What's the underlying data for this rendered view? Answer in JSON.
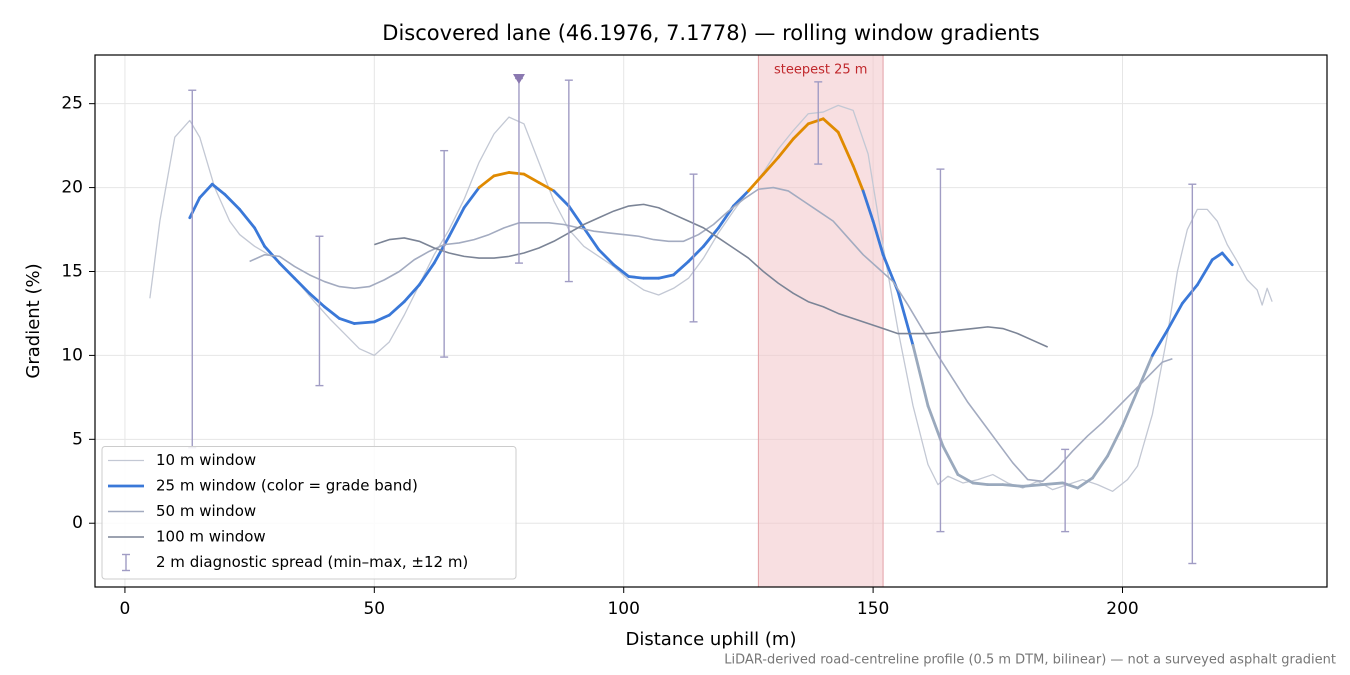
{
  "chart_data": {
    "type": "line",
    "title": "Discovered lane (46.1976, 7.1778) — rolling window gradients",
    "xlabel": "Distance uphill (m)",
    "ylabel": "Gradient (%)",
    "note": "LiDAR-derived road-centreline profile (0.5 m DTM, bilinear) — not a surveyed asphalt gradient",
    "xlim": [
      -6,
      241
    ],
    "ylim": [
      -3.8,
      27.9
    ],
    "xticks": [
      0,
      50,
      100,
      150,
      200
    ],
    "yticks": [
      0,
      5,
      10,
      15,
      20,
      25
    ],
    "grid": true,
    "legend": "lower left",
    "highlight": {
      "label": "steepest 25 m",
      "range": [
        127,
        152
      ],
      "color": "#f2c4c8",
      "text_color": "#c0282c"
    },
    "marker": {
      "x": 79,
      "color": "#8a78b0"
    },
    "series": [
      {
        "name": "10 m window",
        "color": "#c3c8d4",
        "width": 1.3,
        "x": [
          5,
          7,
          10,
          13,
          15,
          18,
          21,
          23,
          26,
          30,
          34,
          38,
          41,
          44,
          47,
          50,
          53,
          56,
          59,
          62,
          65,
          68,
          71,
          74,
          77,
          80,
          83,
          86,
          89,
          92,
          95,
          98,
          101,
          104,
          107,
          110,
          113,
          116,
          119,
          122,
          125,
          128,
          131,
          134,
          137,
          140,
          143,
          146,
          149,
          152,
          155,
          158,
          161,
          163,
          165,
          168,
          171,
          174,
          177,
          180,
          183,
          186,
          189,
          192,
          195,
          198,
          201,
          203,
          206,
          209,
          211,
          213,
          215,
          217,
          219,
          221,
          223,
          225,
          227,
          228,
          229,
          230
        ],
        "values": [
          13.4,
          18,
          23,
          24,
          23,
          20,
          18,
          17.2,
          16.5,
          15.8,
          14.6,
          13.2,
          12.2,
          11.3,
          10.4,
          10,
          10.8,
          12.4,
          14.2,
          16,
          17.5,
          19.3,
          21.5,
          23.2,
          24.2,
          23.8,
          21.5,
          19.2,
          17.5,
          16.5,
          15.9,
          15.3,
          14.5,
          13.9,
          13.6,
          14,
          14.6,
          15.8,
          17.3,
          18.6,
          19.8,
          20.9,
          22.3,
          23.4,
          24.4,
          24.5,
          24.9,
          24.6,
          22,
          16.5,
          11.5,
          7,
          3.5,
          2.3,
          2.8,
          2.4,
          2.6,
          2.9,
          2.4,
          2.1,
          2.5,
          2,
          2.3,
          2.6,
          2.3,
          1.9,
          2.6,
          3.4,
          6.5,
          11.2,
          15,
          17.5,
          18.7,
          18.7,
          18,
          16.6,
          15.6,
          14.5,
          13.9,
          13,
          14,
          13.2
        ]
      },
      {
        "name": "25 m window (color = grade band)",
        "color": "#3a78d8",
        "width": 2.8,
        "band_edges": [
          10,
          20
        ],
        "band_colors": [
          "#9aa9bd",
          "#3a78d8",
          "#e08a00"
        ],
        "x": [
          13,
          15,
          17.5,
          20,
          23,
          26,
          28,
          31,
          34,
          37,
          40,
          43,
          46,
          50,
          53,
          56,
          59,
          62,
          65,
          68,
          71,
          74,
          77,
          80,
          83,
          86,
          89,
          92,
          95,
          98,
          101,
          104,
          107,
          110,
          113,
          116,
          119,
          122,
          125,
          128,
          131,
          134,
          137,
          140,
          143,
          146,
          148,
          150,
          152,
          155,
          158,
          161,
          164,
          167,
          170,
          173,
          176,
          180,
          184,
          188,
          191,
          194,
          197,
          200,
          203,
          206,
          209,
          212,
          215,
          218,
          220,
          222
        ],
        "values": [
          18.2,
          19.4,
          20.2,
          19.6,
          18.7,
          17.6,
          16.5,
          15.5,
          14.6,
          13.7,
          12.9,
          12.2,
          11.9,
          12,
          12.4,
          13.2,
          14.2,
          15.5,
          17.1,
          18.8,
          20,
          20.7,
          20.9,
          20.8,
          20.3,
          19.8,
          18.9,
          17.6,
          16.3,
          15.4,
          14.7,
          14.6,
          14.6,
          14.8,
          15.6,
          16.5,
          17.6,
          18.9,
          19.8,
          20.8,
          21.8,
          22.9,
          23.8,
          24.1,
          23.3,
          21.3,
          19.8,
          18,
          16,
          13.8,
          10.6,
          7,
          4.6,
          2.9,
          2.4,
          2.3,
          2.3,
          2.2,
          2.3,
          2.4,
          2.1,
          2.7,
          4,
          5.8,
          7.9,
          10,
          11.5,
          13.1,
          14.2,
          15.7,
          16.1,
          15.4
        ]
      },
      {
        "name": "50 m window",
        "color": "#a3abc0",
        "width": 1.6,
        "x": [
          25,
          28,
          31,
          34,
          37,
          40,
          43,
          46,
          49,
          52,
          55,
          58,
          61,
          64,
          67,
          70,
          73,
          76,
          79,
          82,
          85,
          88,
          91,
          94,
          97,
          100,
          103,
          106,
          109,
          112,
          115,
          118,
          121,
          124,
          127,
          130,
          133,
          136,
          139,
          142,
          145,
          148,
          151,
          154,
          157,
          160,
          163,
          166,
          169,
          172,
          175,
          178,
          181,
          184,
          187,
          190,
          193,
          196,
          199,
          202,
          205,
          208,
          210
        ],
        "values": [
          15.6,
          16,
          15.9,
          15.3,
          14.8,
          14.4,
          14.1,
          14,
          14.1,
          14.5,
          15,
          15.7,
          16.2,
          16.6,
          16.7,
          16.9,
          17.2,
          17.6,
          17.9,
          17.9,
          17.9,
          17.8,
          17.6,
          17.4,
          17.3,
          17.2,
          17.1,
          16.9,
          16.8,
          16.8,
          17.2,
          17.8,
          18.6,
          19.3,
          19.9,
          20,
          19.8,
          19.2,
          18.6,
          18,
          17,
          16,
          15.2,
          14.4,
          13,
          11.5,
          10,
          8.6,
          7.2,
          6,
          4.8,
          3.6,
          2.6,
          2.5,
          3.3,
          4.3,
          5.2,
          6,
          6.9,
          7.8,
          8.7,
          9.6,
          9.8
        ]
      },
      {
        "name": "100 m window",
        "color": "#7b8496",
        "width": 1.6,
        "x": [
          50,
          53,
          56,
          59,
          62,
          65,
          68,
          71,
          74,
          77,
          80,
          83,
          86,
          89,
          92,
          95,
          98,
          101,
          104,
          107,
          110,
          113,
          116,
          119,
          122,
          125,
          128,
          131,
          134,
          137,
          140,
          143,
          146,
          149,
          152,
          155,
          158,
          161,
          164,
          167,
          170,
          173,
          176,
          179,
          182,
          185
        ],
        "values": [
          16.6,
          16.9,
          17,
          16.8,
          16.4,
          16.1,
          15.9,
          15.8,
          15.8,
          15.9,
          16.1,
          16.4,
          16.8,
          17.3,
          17.8,
          18.2,
          18.6,
          18.9,
          19,
          18.8,
          18.4,
          18,
          17.6,
          17,
          16.4,
          15.8,
          15,
          14.3,
          13.7,
          13.2,
          12.9,
          12.5,
          12.2,
          11.9,
          11.6,
          11.3,
          11.3,
          11.3,
          11.4,
          11.5,
          11.6,
          11.7,
          11.6,
          11.3,
          10.9,
          10.5
        ]
      },
      {
        "name": "2 m diagnostic spread (min–max, ±12 m)",
        "color": "#a09cc4",
        "width": 1.4,
        "errorbar": true,
        "x": [
          13.5,
          39,
          64,
          79,
          89,
          114,
          139,
          163.5,
          188.5,
          214
        ],
        "low": [
          4.5,
          8.2,
          9.9,
          15.5,
          14.4,
          12,
          21.4,
          -0.5,
          -0.5,
          -2.4
        ],
        "high": [
          25.8,
          17.1,
          22.2,
          26.5,
          26.4,
          20.8,
          26.3,
          21.1,
          4.4,
          20.2
        ]
      }
    ]
  }
}
